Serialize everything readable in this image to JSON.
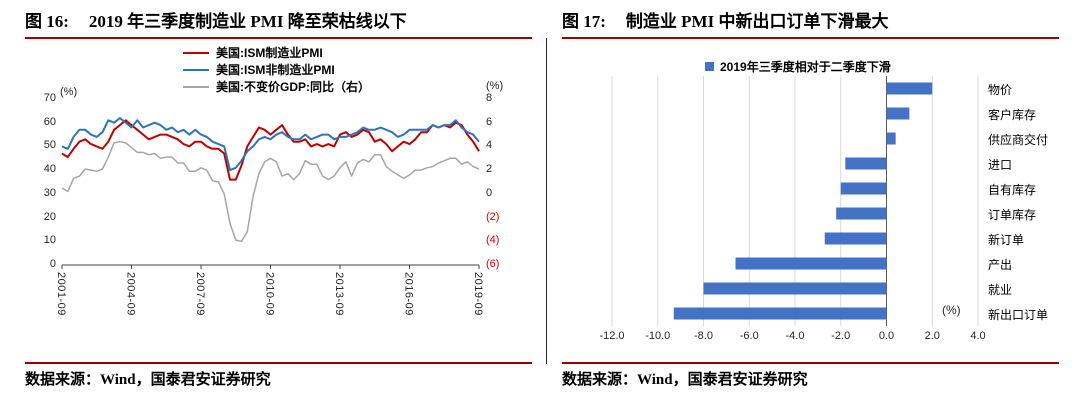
{
  "theme": {
    "rule_color": "#990000",
    "divider_color": "#262626",
    "negative_tick_color": "#E00000"
  },
  "left_panel": {
    "fig_label": "图 16:",
    "title": "2019 年三季度制造业 PMI 降至荣枯线以下",
    "source": "数据来源：Wind，国泰君安证券研究"
  },
  "right_panel": {
    "fig_label": "图 17:",
    "title": "制造业 PMI 中新出口订单下滑最大",
    "source": "数据来源：Wind，国泰君安证券研究"
  },
  "chart_data": [
    {
      "type": "line",
      "title": "2019 年三季度制造业 PMI 降至荣枯线以下",
      "x_start": "2001-09",
      "x_end": "2019-09",
      "x_frequency": "quarterly",
      "x_ticks": [
        "2001-09",
        "2004-09",
        "2007-09",
        "2010-09",
        "2013-09",
        "2016-09",
        "2019-09"
      ],
      "x_tick_every_n_points": 12,
      "grid": "off",
      "legend_position": "top",
      "left_axis": {
        "label": "(%)",
        "min": 0,
        "max": 70,
        "ticks": [
          "70",
          "60",
          "50",
          "40",
          "30",
          "20",
          "10",
          "0"
        ]
      },
      "right_axis": {
        "label": "(%)",
        "min": -6,
        "max": 8,
        "ticks": [
          "8",
          "6",
          "4",
          "2",
          "0",
          "(2)",
          "(4)",
          "(6)"
        ]
      },
      "series": [
        {
          "name": "美国:ISM制造业PMI",
          "color": "#C00000",
          "axis": "left",
          "values": [
            47,
            45.5,
            49,
            52,
            53,
            51,
            50,
            49,
            52,
            57,
            59,
            61,
            59,
            57,
            55,
            53,
            54,
            55,
            55,
            54,
            53,
            51,
            50,
            52,
            52,
            50,
            49,
            49,
            47,
            36,
            36,
            42,
            50,
            54,
            58,
            57,
            55,
            57,
            59,
            55,
            52,
            52,
            53,
            50,
            51,
            50,
            51,
            50,
            55,
            56,
            54,
            55,
            57,
            56,
            52,
            53,
            51,
            48,
            50,
            52,
            51,
            53,
            56,
            56,
            59,
            58,
            59,
            58,
            60,
            59,
            55,
            52,
            48
          ]
        },
        {
          "name": "美国:ISM非制造业PMI",
          "color": "#2E75B6",
          "axis": "left",
          "values": [
            50,
            49,
            54,
            57,
            57,
            55,
            54,
            56,
            61,
            60,
            62,
            60,
            58,
            61,
            58,
            59,
            60,
            59,
            57,
            58,
            56,
            57,
            55,
            57,
            55,
            54,
            52,
            51,
            50,
            40,
            41,
            44,
            48,
            50,
            53,
            54,
            53,
            55,
            56,
            54,
            53,
            53,
            55,
            53,
            54,
            55,
            55,
            53,
            54,
            54,
            55,
            56,
            58,
            57,
            57,
            58,
            57,
            56,
            54,
            55,
            57,
            57,
            57,
            57,
            59,
            58,
            59,
            59,
            61,
            58,
            56,
            55,
            52
          ]
        },
        {
          "name": "美国:不变价GDP:同比（右）",
          "color": "#A6A6A6",
          "axis": "right",
          "values": [
            0.5,
            0.2,
            1.3,
            1.5,
            2.1,
            2.0,
            1.9,
            2.1,
            3.1,
            4.3,
            4.4,
            4.3,
            3.9,
            3.5,
            3.5,
            3.3,
            3.4,
            3.0,
            3.1,
            3.1,
            2.6,
            2.6,
            1.9,
            1.9,
            2.2,
            2.0,
            1.1,
            1.0,
            0.0,
            -2.5,
            -3.9,
            -4.0,
            -3.2,
            -0.2,
            1.7,
            2.7,
            3.0,
            2.7,
            1.5,
            1.7,
            1.2,
            1.7,
            2.8,
            2.5,
            2.5,
            1.5,
            1.2,
            1.5,
            2.2,
            2.7,
            1.5,
            2.6,
            2.9,
            2.7,
            3.3,
            3.3,
            2.3,
            1.9,
            1.6,
            1.3,
            1.6,
            2.0,
            2.0,
            2.2,
            2.3,
            2.6,
            2.8,
            3.0,
            3.0,
            2.5,
            2.7,
            2.3,
            2.1
          ]
        }
      ]
    },
    {
      "type": "bar",
      "orientation": "horizontal",
      "title": "制造业 PMI 中新出口订单下滑最大",
      "legend": "2019年三季度相对于二季度下滑",
      "bar_color": "#4472C4",
      "axis_unit_label": "(%)",
      "xlim": [
        -12,
        4
      ],
      "x_ticks": [
        "-12.0",
        "-10.0",
        "-8.0",
        "-6.0",
        "-4.0",
        "-2.0",
        "0.0",
        "2.0",
        "4.0"
      ],
      "grid": "vertical",
      "categories": [
        "物价",
        "客户库存",
        "供应商交付",
        "进口",
        "自有库存",
        "订单库存",
        "新订单",
        "产出",
        "就业",
        "新出口订单"
      ],
      "values": [
        2.0,
        1.0,
        0.4,
        -1.8,
        -2.0,
        -2.2,
        -2.7,
        -6.6,
        -8.0,
        -9.3
      ]
    }
  ]
}
